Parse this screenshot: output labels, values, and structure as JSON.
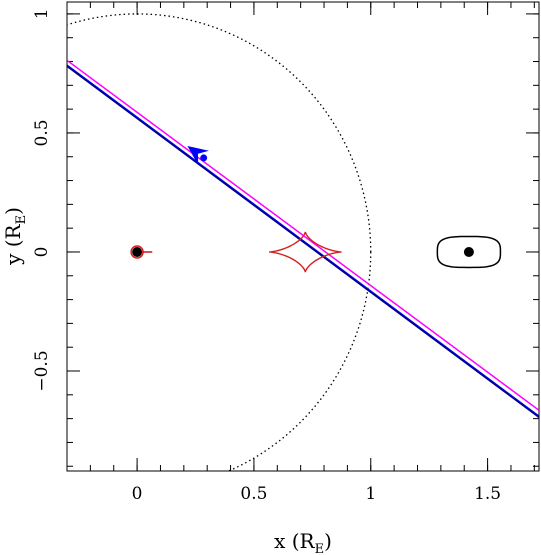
{
  "chart_data": {
    "type": "scatter",
    "xlabel": "x (R",
    "xlabel_sub": "E",
    "xlabel_close": ")",
    "ylabel": "y (R",
    "ylabel_sub": "E",
    "ylabel_close": ")",
    "xlim": [
      -0.3,
      1.72
    ],
    "ylim": [
      -0.92,
      1.05
    ],
    "xticks": [
      {
        "v": 0,
        "label": "0"
      },
      {
        "v": 0.5,
        "label": "0.5"
      },
      {
        "v": 1,
        "label": "1"
      },
      {
        "v": 1.5,
        "label": "1.5"
      }
    ],
    "yticks": [
      {
        "v": -0.5,
        "label": "−0.5"
      },
      {
        "v": 0,
        "label": "0"
      },
      {
        "v": 0.5,
        "label": "0.5"
      },
      {
        "v": 1,
        "label": "1"
      }
    ],
    "minor_x_step": 0.1,
    "minor_y_step": 0.1,
    "series": [
      {
        "kind": "circle-dotted",
        "color": "#000000",
        "center": [
          0,
          0
        ],
        "radius": 1.0
      },
      {
        "kind": "line",
        "color": "#0000ff",
        "points": [
          [
            -0.3,
            0.785
          ],
          [
            1.72,
            -0.69
          ]
        ]
      },
      {
        "kind": "line",
        "color": "#ff00ff",
        "points": [
          [
            -0.3,
            0.805
          ],
          [
            1.72,
            -0.665
          ]
        ]
      },
      {
        "kind": "line",
        "color": "#000080",
        "points": [
          [
            -0.3,
            0.78
          ],
          [
            1.72,
            -0.695
          ]
        ]
      },
      {
        "kind": "caustic",
        "color": "#d62020",
        "center": [
          0.72,
          0.0
        ],
        "half_width": 0.155,
        "half_height": 0.085
      },
      {
        "kind": "caustic-small",
        "color": "#d62020",
        "points": [
          [
            0.0,
            0.0
          ],
          [
            0.065,
            0.0
          ]
        ]
      },
      {
        "kind": "closed-curve",
        "color": "#000000",
        "center": [
          1.42,
          0.0
        ],
        "half_width": 0.135,
        "half_height": 0.065
      }
    ],
    "masses": [
      {
        "x": 0.0,
        "y": 0.0,
        "color": "#000000",
        "ring": "#d62020"
      },
      {
        "x": 1.42,
        "y": 0.0,
        "color": "#000000"
      }
    ],
    "source_marker": {
      "x": 0.285,
      "y": 0.395,
      "color": "#0000ff"
    },
    "arrow": {
      "x": 0.25,
      "y": 0.42,
      "color": "#0000ff"
    }
  }
}
